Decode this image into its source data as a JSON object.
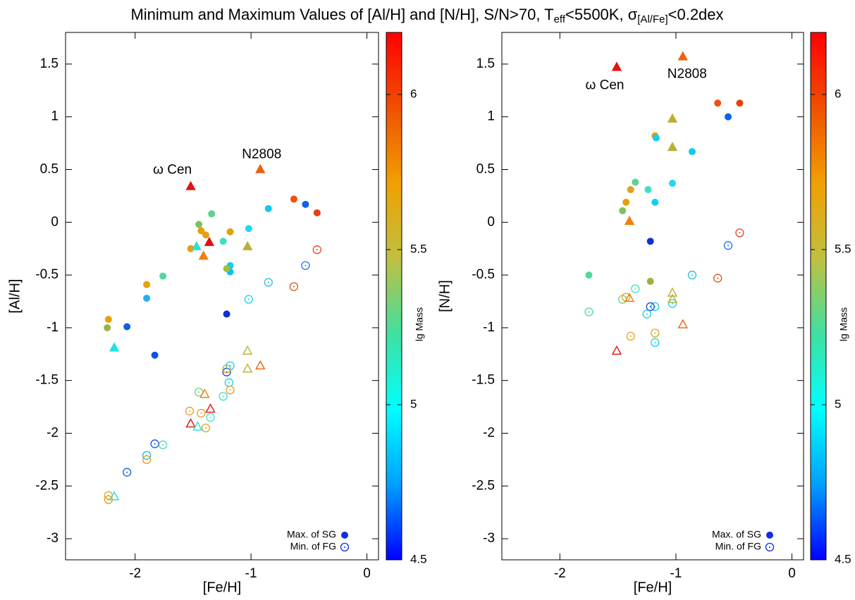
{
  "title": [
    "Minimum and Maximum Values of [Al/H] and [N/H], S/N>70, T",
    "eff",
    "<5500K, σ",
    "[Al/Fe]",
    "<0.2dex"
  ],
  "chart_data": [
    {
      "type": "scatter",
      "xlabel": "[Fe/H]",
      "ylabel": "[Al/H]",
      "xlim": [
        -2.6,
        0.1
      ],
      "xticks": [
        -2,
        -1,
        0
      ],
      "ylim": [
        -3.2,
        1.8
      ],
      "yticks": [
        -3,
        -2.5,
        -2,
        -1.5,
        -1,
        -0.5,
        0,
        0.5,
        1,
        1.5
      ],
      "legend": "bottom right",
      "annotations": [
        "ω Cen",
        "N2808"
      ],
      "colorbar": {
        "label": "lg Mass",
        "lim": [
          4.5,
          6.2
        ],
        "ticks": [
          4.5,
          5,
          5.5,
          6
        ],
        "colormap": [
          "#0000ff",
          "#00a0ff",
          "#00ffff",
          "#40e0a0",
          "#c0c040",
          "#f0a000",
          "#f05000",
          "#ff0000"
        ]
      },
      "series": [
        {
          "name": "Max. of SG",
          "color": "#1030e0",
          "marker": "circle",
          "filled": true,
          "x": [
            -0.43,
            -0.53,
            -0.63,
            -0.85,
            -1.02,
            -1.18,
            -1.24,
            -1.34,
            -1.45,
            -1.43,
            -1.39,
            -1.52,
            -1.18,
            -1.18,
            -1.21,
            -1.76,
            -1.9,
            -1.9,
            -2.23,
            -2.24,
            -2.07,
            -1.83,
            -1.21
          ],
          "values": [
            0.09,
            0.17,
            0.22,
            0.13,
            -0.06,
            -0.09,
            -0.18,
            0.08,
            -0.02,
            -0.08,
            -0.12,
            -0.25,
            -0.41,
            -0.47,
            -0.44,
            -0.51,
            -0.59,
            -0.72,
            -0.92,
            -1.0,
            -0.99,
            -1.26,
            -0.87
          ],
          "colors": [
            "#e84010",
            "#1060f0",
            "#f05010",
            "#10c8f0",
            "#20d8f0",
            "#e0a010",
            "#40e0c0",
            "#60d090",
            "#80c060",
            "#e8a000",
            "#e0a020",
            "#e8a010",
            "#10d0f0",
            "#10c0f0",
            "#a0c040",
            "#50d8a0",
            "#e8a010",
            "#20b0f0",
            "#e8a010",
            "#a0b040",
            "#1060e0",
            "#1050e8",
            "#1030d0"
          ]
        },
        {
          "marker": "triangle",
          "filled": true,
          "x": [
            -1.52,
            -0.92,
            -1.36,
            -1.47,
            -1.41,
            -1.03,
            -2.18
          ],
          "values": [
            0.34,
            0.5,
            -0.19,
            -0.23,
            -0.32,
            -0.23,
            -1.19
          ],
          "colors": [
            "#e81010",
            "#f06010",
            "#e01010",
            "#30e0d0",
            "#f08010",
            "#b8b030",
            "#20e0e0"
          ]
        },
        {
          "name": "Min. of FG",
          "color": "#1030e0",
          "marker": "circle",
          "filled": false,
          "x": [
            -0.43,
            -0.53,
            -0.63,
            -0.85,
            -1.02,
            -1.21,
            -1.18,
            -1.21,
            -1.19,
            -1.18,
            -1.24,
            -1.45,
            -1.35,
            -1.53,
            -1.43,
            -1.39,
            -1.83,
            -1.76,
            -1.9,
            -1.9,
            -2.07,
            -2.23,
            -2.23
          ],
          "values": [
            -0.26,
            -0.41,
            -0.61,
            -0.57,
            -0.73,
            -1.42,
            -1.36,
            -1.39,
            -1.52,
            -1.59,
            -1.65,
            -1.61,
            -1.85,
            -1.79,
            -1.81,
            -1.95,
            -2.1,
            -2.11,
            -2.21,
            -2.25,
            -2.37,
            -2.59,
            -2.63
          ],
          "colors": [
            "#e84020",
            "#2070f0",
            "#e05020",
            "#20c0e0",
            "#20d0f0",
            "#2040d0",
            "#10d0f0",
            "#d0a020",
            "#10d0f0",
            "#e8a020",
            "#40e0c0",
            "#70d080",
            "#40e0c0",
            "#e8a020",
            "#e8a020",
            "#e8a020",
            "#1050e8",
            "#50d8a0",
            "#20b0f0",
            "#e8a010",
            "#1060e0",
            "#e8a010",
            "#e0a020"
          ]
        },
        {
          "marker": "triangle",
          "filled": false,
          "x": [
            -1.03,
            -0.92,
            -1.03,
            -1.4,
            -1.35,
            -1.52,
            -1.46,
            -2.18
          ],
          "values": [
            -1.22,
            -1.36,
            -1.39,
            -1.63,
            -1.77,
            -1.91,
            -1.94,
            -2.6
          ],
          "colors": [
            "#b8b030",
            "#f06010",
            "#b8b030",
            "#f08010",
            "#e01010",
            "#e81010",
            "#30e0d0",
            "#20e0e0"
          ]
        }
      ]
    },
    {
      "type": "scatter",
      "xlabel": "[Fe/H]",
      "ylabel": "[N/H]",
      "xlim": [
        -2.5,
        0.1
      ],
      "xticks": [
        -2,
        -1,
        0
      ],
      "ylim": [
        -3.2,
        1.8
      ],
      "yticks": [
        -3,
        -2.5,
        -2,
        -1.5,
        -1,
        -0.5,
        0,
        0.5,
        1,
        1.5
      ],
      "legend": "bottom right",
      "annotations": [
        "ω Cen",
        "N2808"
      ],
      "colorbar": {
        "label": "lg Mass",
        "lim": [
          4.5,
          6.2
        ],
        "ticks": [
          4.5,
          5,
          5.5,
          6
        ],
        "colormap": [
          "#0000ff",
          "#00a0ff",
          "#00ffff",
          "#40e0a0",
          "#c0c040",
          "#f0a000",
          "#f05000",
          "#ff0000"
        ]
      },
      "series": [
        {
          "name": "Max. of SG",
          "color": "#1030e0",
          "marker": "circle",
          "filled": true,
          "x": [
            -0.45,
            -0.55,
            -0.64,
            -0.86,
            -1.03,
            -1.18,
            -1.17,
            -1.24,
            -1.35,
            -1.39,
            -1.43,
            -1.46,
            -1.18,
            -1.22,
            -1.75,
            -1.22
          ],
          "values": [
            1.13,
            1.0,
            1.13,
            0.67,
            0.37,
            0.82,
            0.8,
            0.31,
            0.38,
            0.31,
            0.19,
            0.11,
            0.19,
            -0.18,
            -0.5,
            -0.56
          ],
          "colors": [
            "#e84010",
            "#1060f0",
            "#f05010",
            "#10c8f0",
            "#20d8f0",
            "#e0a010",
            "#10d0f0",
            "#40e0c0",
            "#60d090",
            "#e0a020",
            "#e8a000",
            "#80c060",
            "#10d0f0",
            "#1030d0",
            "#50d8a0",
            "#a0b040"
          ]
        },
        {
          "marker": "triangle",
          "filled": true,
          "x": [
            -1.51,
            -0.94,
            -1.03,
            -1.03,
            -1.4
          ],
          "values": [
            1.47,
            1.57,
            0.98,
            0.71,
            0.01
          ],
          "colors": [
            "#e81010",
            "#f06010",
            "#b8b030",
            "#b8b030",
            "#f08010"
          ]
        },
        {
          "name": "Min. of FG",
          "color": "#1030e0",
          "marker": "circle",
          "filled": false,
          "x": [
            -0.45,
            -0.55,
            -0.86,
            -0.64,
            -1.03,
            -1.35,
            -1.46,
            -1.43,
            -1.18,
            -1.22,
            -1.25,
            -1.18,
            -1.39,
            -1.18,
            -1.75
          ],
          "values": [
            -0.1,
            -0.22,
            -0.5,
            -0.53,
            -0.77,
            -0.63,
            -0.73,
            -0.71,
            -0.8,
            -0.8,
            -0.87,
            -1.05,
            -1.08,
            -1.14,
            -0.85
          ],
          "colors": [
            "#e84020",
            "#2070f0",
            "#20c0e0",
            "#e05020",
            "#20d0f0",
            "#40e0c0",
            "#70d080",
            "#e8a020",
            "#10d0f0",
            "#2040d0",
            "#10d0f0",
            "#e8a020",
            "#e8a020",
            "#10d0f0",
            "#50d8a0"
          ]
        },
        {
          "marker": "triangle",
          "filled": false,
          "x": [
            -1.03,
            -1.03,
            -1.4,
            -0.94,
            -1.51
          ],
          "values": [
            -0.67,
            -0.73,
            -0.72,
            -0.97,
            -1.22
          ],
          "colors": [
            "#b8b030",
            "#b8b030",
            "#f08010",
            "#f06010",
            "#e81010"
          ]
        }
      ]
    }
  ]
}
